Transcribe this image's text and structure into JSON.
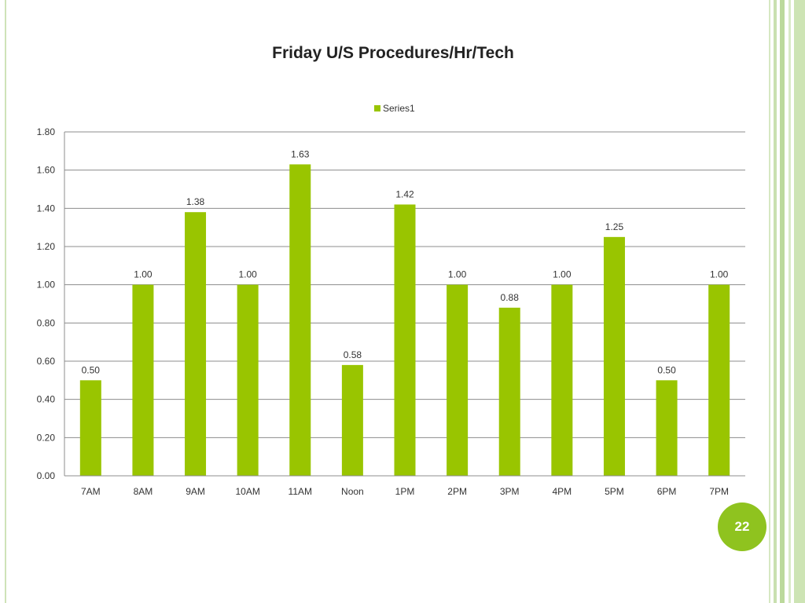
{
  "chart_data": {
    "type": "bar",
    "title": "Friday  U/S Procedures/Hr/Tech",
    "categories": [
      "7AM",
      "8AM",
      "9AM",
      "10AM",
      "11AM",
      "Noon",
      "1PM",
      "2PM",
      "3PM",
      "4PM",
      "5PM",
      "6PM",
      "7PM"
    ],
    "series": [
      {
        "name": "Series1",
        "values": [
          0.5,
          1.0,
          1.38,
          1.0,
          1.63,
          0.58,
          1.42,
          1.0,
          0.88,
          1.0,
          1.25,
          0.5,
          1.0
        ],
        "data_labels": [
          "0.50",
          "1.00",
          "1.38",
          "1.00",
          "1.63",
          "0.58",
          "1.42",
          "1.00",
          "0.88",
          "1.00",
          "1.25",
          "0.50",
          "1.00"
        ]
      }
    ],
    "yticks": [
      "0.00",
      "0.20",
      "0.40",
      "0.60",
      "0.80",
      "1.00",
      "1.20",
      "1.40",
      "1.60",
      "1.80"
    ],
    "ylim": [
      0,
      1.8
    ],
    "grid": true,
    "legend": "top-center",
    "bar_color": "#99c500"
  },
  "page_number": "22",
  "colors": {
    "accent": "#8fc31f",
    "border": "#cde4b4"
  }
}
